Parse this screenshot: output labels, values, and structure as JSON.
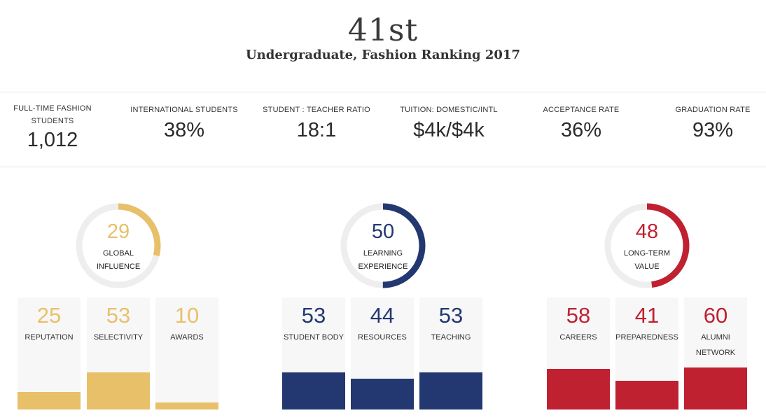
{
  "header": {
    "rank": "41st",
    "subtitle": "Undergraduate, Fashion Ranking 2017"
  },
  "stats": [
    {
      "label": "FULL-TIME FASHION STUDENTS",
      "value": "1,012"
    },
    {
      "label": "INTERNATIONAL STUDENTS",
      "value": "38%"
    },
    {
      "label": "STUDENT : TEACHER RATIO",
      "value": "18:1"
    },
    {
      "label": "TUITION: DOMESTIC/INTL",
      "value": "$4k/$4k"
    },
    {
      "label": "ACCEPTANCE RATE",
      "value": "36%"
    },
    {
      "label": "GRADUATION RATE",
      "value": "93%"
    }
  ],
  "colors": {
    "gold": "#e8c06a",
    "navy": "#233870",
    "red": "#bf2131",
    "track": "#eeeeee"
  },
  "groups": [
    {
      "score": "29",
      "score_fraction": 0.29,
      "label_line1": "GLOBAL",
      "label_line2": "INFLUENCE",
      "bars": [
        {
          "score": "25",
          "label": "REPUTATION",
          "level": 0.25
        },
        {
          "score": "53",
          "label": "SELECTIVITY",
          "level": 0.53
        },
        {
          "score": "10",
          "label": "AWARDS",
          "level": 0.1
        }
      ]
    },
    {
      "score": "50",
      "score_fraction": 0.5,
      "label_line1": "LEARNING",
      "label_line2": "EXPERIENCE",
      "bars": [
        {
          "score": "53",
          "label": "STUDENT BODY",
          "level": 0.53
        },
        {
          "score": "44",
          "label": "RESOURCES",
          "level": 0.44
        },
        {
          "score": "53",
          "label": "TEACHING",
          "level": 0.53
        }
      ]
    },
    {
      "score": "48",
      "score_fraction": 0.48,
      "label_line1": "LONG-TERM",
      "label_line2": "VALUE",
      "bars": [
        {
          "score": "58",
          "label": "CAREERS",
          "level": 0.58
        },
        {
          "score": "41",
          "label": "PREPAREDNESS",
          "level": 0.41
        },
        {
          "score": "60",
          "label": "ALUMNI NETWORK",
          "level": 0.6
        }
      ]
    }
  ]
}
